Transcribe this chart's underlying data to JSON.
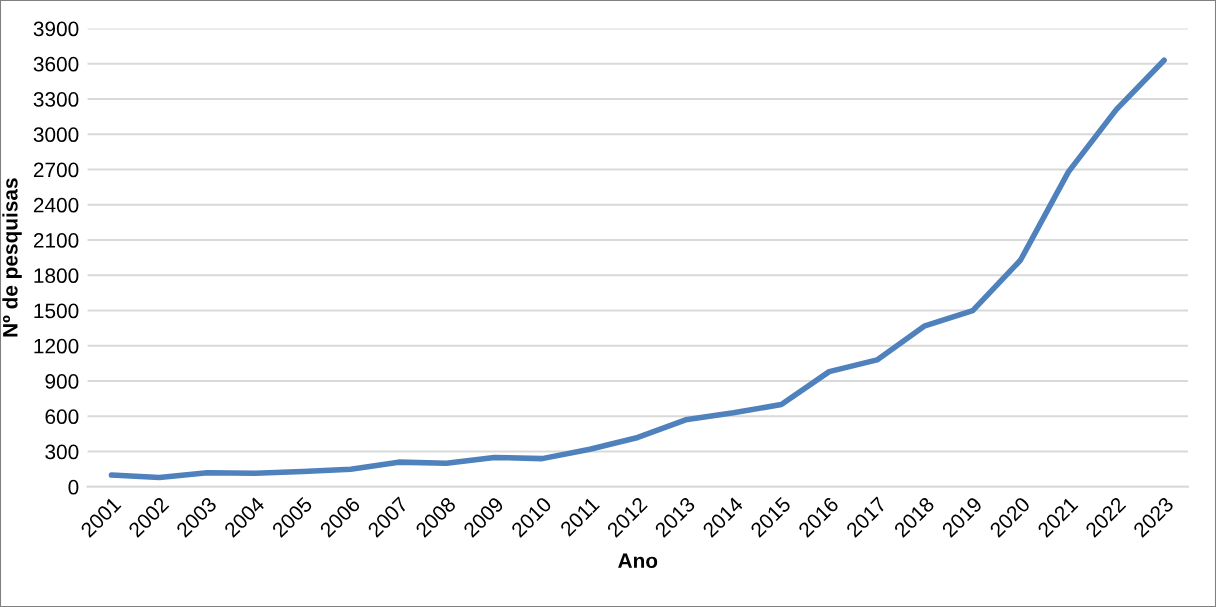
{
  "chart_data": {
    "type": "line",
    "xlabel": "Ano",
    "ylabel": "Nº de pesquisas",
    "categories": [
      "2001",
      "2002",
      "2003",
      "2004",
      "2005",
      "2006",
      "2007",
      "2008",
      "2009",
      "2010",
      "2011",
      "2012",
      "2013",
      "2014",
      "2015",
      "2016",
      "2017",
      "2018",
      "2019",
      "2020",
      "2021",
      "2022",
      "2023"
    ],
    "series": [
      {
        "color": "#4f81bd",
        "values": [
          100,
          80,
          120,
          115,
          130,
          150,
          210,
          200,
          250,
          240,
          320,
          420,
          570,
          630,
          700,
          980,
          1080,
          1370,
          1500,
          1930,
          2680,
          3210,
          3630
        ]
      }
    ],
    "ylim": [
      0,
      3900
    ],
    "yticks": [
      0,
      300,
      600,
      900,
      1200,
      1500,
      1800,
      2100,
      2400,
      2700,
      3000,
      3300,
      3600,
      3900
    ],
    "grid": "y",
    "legend": false,
    "marker": "none",
    "line_style": "solid"
  }
}
